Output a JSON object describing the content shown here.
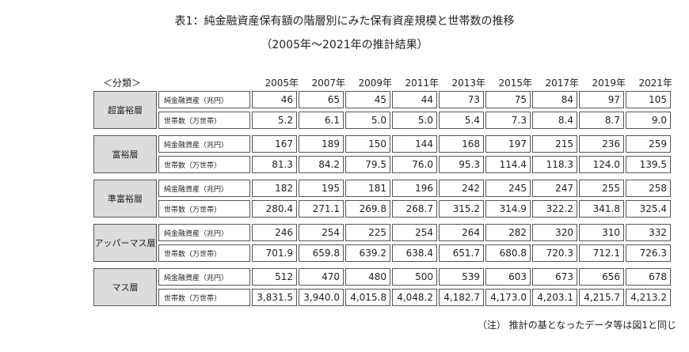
{
  "title": "表1：純金融資産保有額の階層別にみた保有資産規模と世帯数の推移",
  "subtitle": "（2005年〜2021年の推計結果）",
  "category_header": "＜分類＞",
  "years": [
    "2005年",
    "2007年",
    "2009年",
    "2011年",
    "2013年",
    "2015年",
    "2017年",
    "2019年",
    "2021年"
  ],
  "metric_labels": {
    "assets": "純金融資産（兆円）",
    "households": "世帯数（万世帯）"
  },
  "groups": [
    {
      "name": "超富裕層",
      "assets": [
        "46",
        "65",
        "45",
        "44",
        "73",
        "75",
        "84",
        "97",
        "105"
      ],
      "households": [
        "5.2",
        "6.1",
        "5.0",
        "5.0",
        "5.4",
        "7.3",
        "8.4",
        "8.7",
        "9.0"
      ]
    },
    {
      "name": "富裕層",
      "assets": [
        "167",
        "189",
        "150",
        "144",
        "168",
        "197",
        "215",
        "236",
        "259"
      ],
      "households": [
        "81.3",
        "84.2",
        "79.5",
        "76.0",
        "95.3",
        "114.4",
        "118.3",
        "124.0",
        "139.5"
      ]
    },
    {
      "name": "準富裕層",
      "assets": [
        "182",
        "195",
        "181",
        "196",
        "242",
        "245",
        "247",
        "255",
        "258"
      ],
      "households": [
        "280.4",
        "271.1",
        "269.8",
        "268.7",
        "315.2",
        "314.9",
        "322.2",
        "341.8",
        "325.4"
      ]
    },
    {
      "name": "アッパーマス層",
      "assets": [
        "246",
        "254",
        "225",
        "254",
        "264",
        "282",
        "320",
        "310",
        "332"
      ],
      "households": [
        "701.9",
        "659.8",
        "639.2",
        "638.4",
        "651.7",
        "680.8",
        "720.3",
        "712.1",
        "726.3"
      ]
    },
    {
      "name": "マス層",
      "assets": [
        "512",
        "470",
        "480",
        "500",
        "539",
        "603",
        "673",
        "656",
        "678"
      ],
      "households": [
        "3,831.5",
        "3,940.0",
        "4,015.8",
        "4,048.2",
        "4,182.7",
        "4,173.0",
        "4,203.1",
        "4,215.7",
        "4,213.2"
      ]
    }
  ],
  "note": "（注） 推計の基となったデータ等は図1と同じ"
}
